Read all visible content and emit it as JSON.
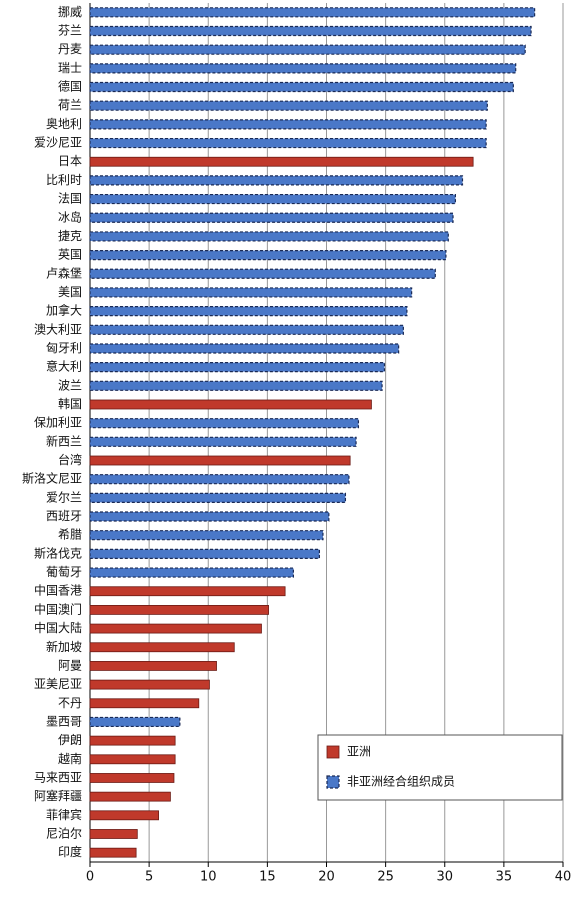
{
  "chart_data": {
    "type": "bar",
    "orientation": "horizontal",
    "categories": [
      "挪威",
      "芬兰",
      "丹麦",
      "瑞士",
      "德国",
      "荷兰",
      "奥地利",
      "爱沙尼亚",
      "日本",
      "比利时",
      "法国",
      "冰岛",
      "捷克",
      "英国",
      "卢森堡",
      "美国",
      "加拿大",
      "澳大利亚",
      "匈牙利",
      "意大利",
      "波兰",
      "韩国",
      "保加利亚",
      "新西兰",
      "台湾",
      "斯洛文尼亚",
      "爱尔兰",
      "西班牙",
      "希腊",
      "斯洛伐克",
      "葡萄牙",
      "中国香港",
      "中国澳门",
      "中国大陆",
      "新加坡",
      "阿曼",
      "亚美尼亚",
      "不丹",
      "墨西哥",
      "伊朗",
      "越南",
      "马来西亚",
      "阿塞拜疆",
      "菲律宾",
      "尼泊尔",
      "印度"
    ],
    "series": [
      {
        "name": "亚洲",
        "color": "#c0392b",
        "values": [
          null,
          null,
          null,
          null,
          null,
          null,
          null,
          null,
          32.4,
          null,
          null,
          null,
          null,
          null,
          null,
          null,
          null,
          null,
          null,
          null,
          null,
          23.8,
          null,
          null,
          22.0,
          null,
          null,
          null,
          null,
          null,
          null,
          16.5,
          15.1,
          14.5,
          12.2,
          10.7,
          10.1,
          9.2,
          null,
          7.2,
          7.2,
          7.1,
          6.8,
          5.8,
          4.0,
          3.9
        ]
      },
      {
        "name": "非亚洲经合组织成员",
        "color": "#4a78c8",
        "values": [
          37.6,
          37.3,
          36.8,
          36.0,
          35.8,
          33.6,
          33.5,
          33.5,
          null,
          31.5,
          30.9,
          30.7,
          30.3,
          30.1,
          29.2,
          27.2,
          26.8,
          26.5,
          26.1,
          24.9,
          24.7,
          null,
          22.7,
          22.5,
          null,
          21.9,
          21.6,
          20.2,
          19.7,
          19.4,
          17.2,
          null,
          null,
          null,
          null,
          null,
          null,
          null,
          7.6,
          null,
          null,
          null,
          null,
          null,
          null,
          null
        ]
      }
    ],
    "xlim": [
      0,
      40
    ],
    "xticks": [
      0,
      5,
      10,
      15,
      20,
      25,
      30,
      35,
      40
    ],
    "grid": true
  }
}
